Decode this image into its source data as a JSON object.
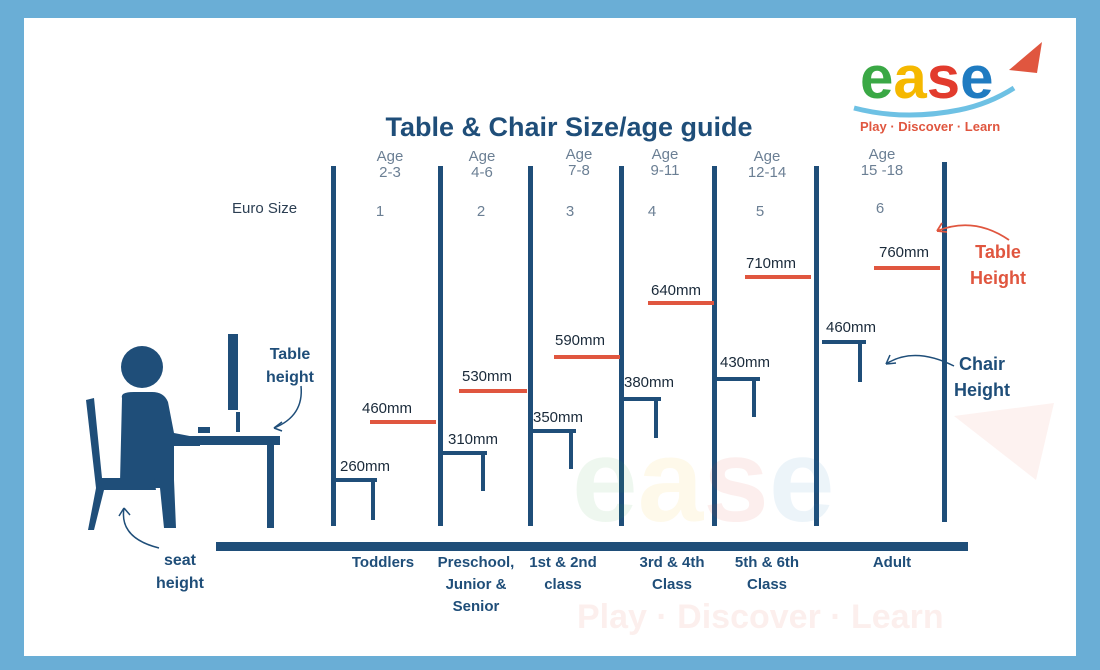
{
  "title": "Table & Chair Size/age guide",
  "logo": {
    "letters": [
      "e",
      "a",
      "s",
      "e"
    ],
    "letter_colors": [
      "#3aa845",
      "#f5b800",
      "#e23b2d",
      "#1f7bc1"
    ],
    "accent": "#e0563f",
    "tagline": "Play · Discover · Learn"
  },
  "watermark": {
    "word": "ease",
    "tagline": "Play · Discover · Learn"
  },
  "euro_size_label": "Euro Size",
  "columns": [
    {
      "age_label": "Age",
      "age_range": "2-3",
      "euro_size": "1",
      "table_height": "460mm",
      "chair_height": "260mm",
      "category": "Toddlers"
    },
    {
      "age_label": "Age",
      "age_range": "4-6",
      "euro_size": "2",
      "table_height": "530mm",
      "chair_height": "310mm",
      "category": "Preschool, Junior & Senior"
    },
    {
      "age_label": "Age",
      "age_range": "7-8",
      "euro_size": "3",
      "table_height": "590mm",
      "chair_height": "350mm",
      "category": "1st & 2nd class"
    },
    {
      "age_label": "Age",
      "age_range": "9-11",
      "euro_size": "4",
      "table_height": "640mm",
      "chair_height": "380mm",
      "category": "3rd & 4th Class"
    },
    {
      "age_label": "Age",
      "age_range": "12-14",
      "euro_size": "5",
      "table_height": "710mm",
      "chair_height": "430mm",
      "category": "5th & 6th Class"
    },
    {
      "age_label": "Age",
      "age_range": "15 -18",
      "euro_size": "6",
      "table_height": "760mm",
      "chair_height": "460mm",
      "category": "Adult"
    }
  ],
  "callouts": {
    "table_height_left": "Table height",
    "seat_height": "seat height",
    "chair_height": "Chair Height",
    "table_height_right": "Table Height"
  },
  "colors": {
    "navy": "#1f4e79",
    "red": "#e0563f",
    "frame": "#6aaed6"
  }
}
